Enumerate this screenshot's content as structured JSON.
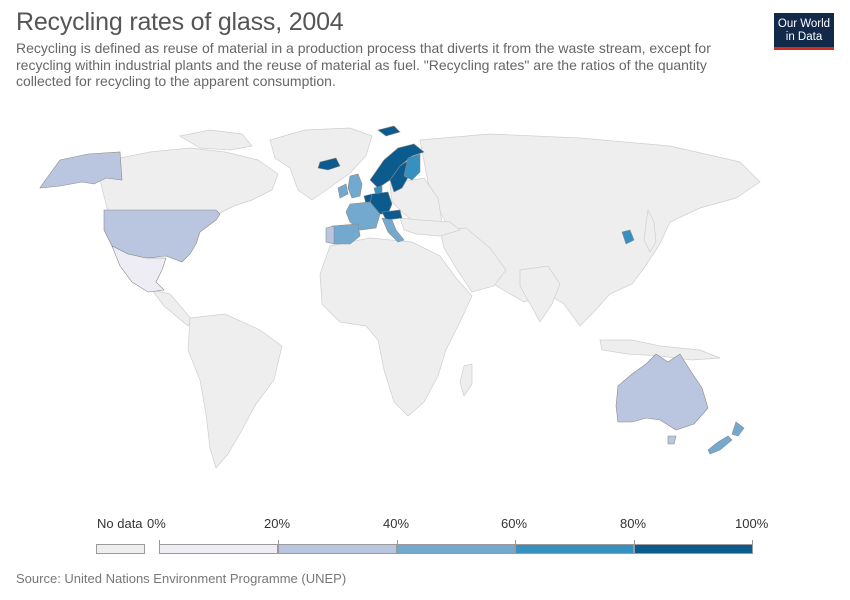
{
  "header": {
    "title": "Recycling rates of glass, 2004",
    "subtitle": "Recycling is defined as reuse of material in a production process that diverts it from the waste stream, except for recycling within industrial plants and the reuse of material as fuel. \"Recycling rates\" are the ratios of the quantity collected for recycling to the apparent consumption."
  },
  "logo": {
    "line1": "Our World",
    "line2": "in Data",
    "background": "#12294a",
    "accent": "#d42b21"
  },
  "legend": {
    "no_data_label": "No data",
    "no_data_color": "#eeeeee",
    "ticks": [
      "0%",
      "20%",
      "40%",
      "60%",
      "80%",
      "100%"
    ],
    "bins": [
      {
        "range": "0–20%",
        "color": "#eeedf5"
      },
      {
        "range": "20–40%",
        "color": "#bac6df"
      },
      {
        "range": "40–60%",
        "color": "#74a9cf"
      },
      {
        "range": "60–80%",
        "color": "#3690c0"
      },
      {
        "range": "80–100%",
        "color": "#0b5b8e"
      }
    ]
  },
  "map": {
    "land_color": "#eeeeee",
    "border_color": "#cfcfcf",
    "countries": [
      {
        "name": "United States",
        "bin": "20–40%"
      },
      {
        "name": "Mexico",
        "bin": "0–20%"
      },
      {
        "name": "Australia",
        "bin": "20–40%"
      },
      {
        "name": "New Zealand",
        "bin": "40–60%"
      },
      {
        "name": "South Korea",
        "bin": "60–80%"
      },
      {
        "name": "United Kingdom",
        "bin": "40–60%"
      },
      {
        "name": "Spain",
        "bin": "40–60%"
      },
      {
        "name": "France",
        "bin": "40–60%"
      },
      {
        "name": "Italy",
        "bin": "40–60%"
      },
      {
        "name": "Portugal",
        "bin": "20–40%"
      },
      {
        "name": "Germany",
        "bin": "80–100%"
      },
      {
        "name": "Sweden",
        "bin": "80–100%"
      },
      {
        "name": "Norway",
        "bin": "80–100%"
      },
      {
        "name": "Finland",
        "bin": "60–80%"
      },
      {
        "name": "Iceland",
        "bin": "80–100%"
      },
      {
        "name": "Switzerland",
        "bin": "80–100%"
      },
      {
        "name": "Austria",
        "bin": "80–100%"
      },
      {
        "name": "Belgium",
        "bin": "80–100%"
      },
      {
        "name": "Netherlands",
        "bin": "80–100%"
      },
      {
        "name": "Denmark",
        "bin": "60–80%"
      },
      {
        "name": "Ireland",
        "bin": "40–60%"
      }
    ]
  },
  "source": "Source: United Nations Environment Programme (UNEP)"
}
